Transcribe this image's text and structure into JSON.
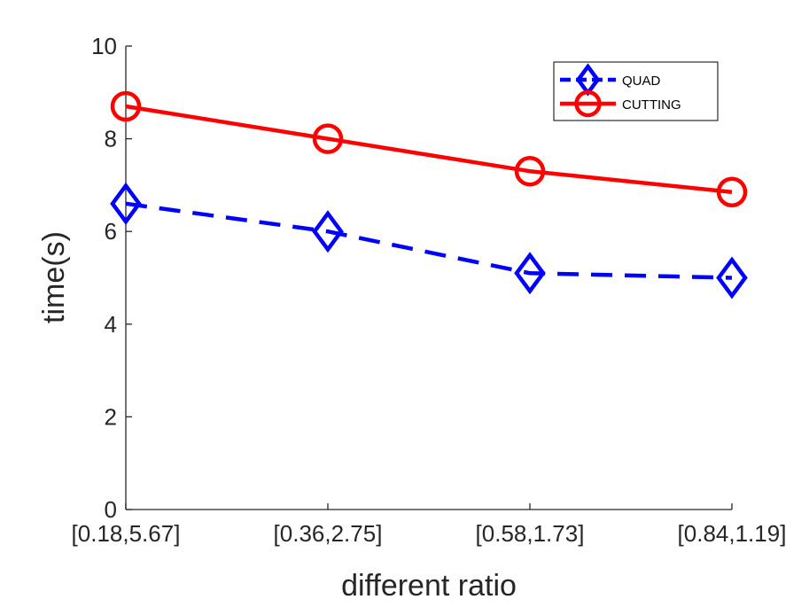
{
  "chart_data": {
    "type": "line",
    "categories": [
      "[0.18,5.67]",
      "[0.36,2.75]",
      "[0.58,1.73]",
      "[0.84,1.19]"
    ],
    "series": [
      {
        "name": "QUAD",
        "values": [
          6.6,
          6.0,
          5.1,
          5.0
        ],
        "color": "#0000ff",
        "line_style": "dashed",
        "marker": "diamond"
      },
      {
        "name": "CUTTING",
        "values": [
          8.7,
          8.0,
          7.3,
          6.85
        ],
        "color": "#ff0000",
        "line_style": "solid",
        "marker": "circle"
      }
    ],
    "xlabel": "different ratio",
    "ylabel": "time(s)",
    "ylim": [
      0,
      10
    ],
    "yticks": [
      "0",
      "2",
      "4",
      "6",
      "8",
      "10"
    ],
    "grid": false,
    "legend_position": "top-right"
  }
}
